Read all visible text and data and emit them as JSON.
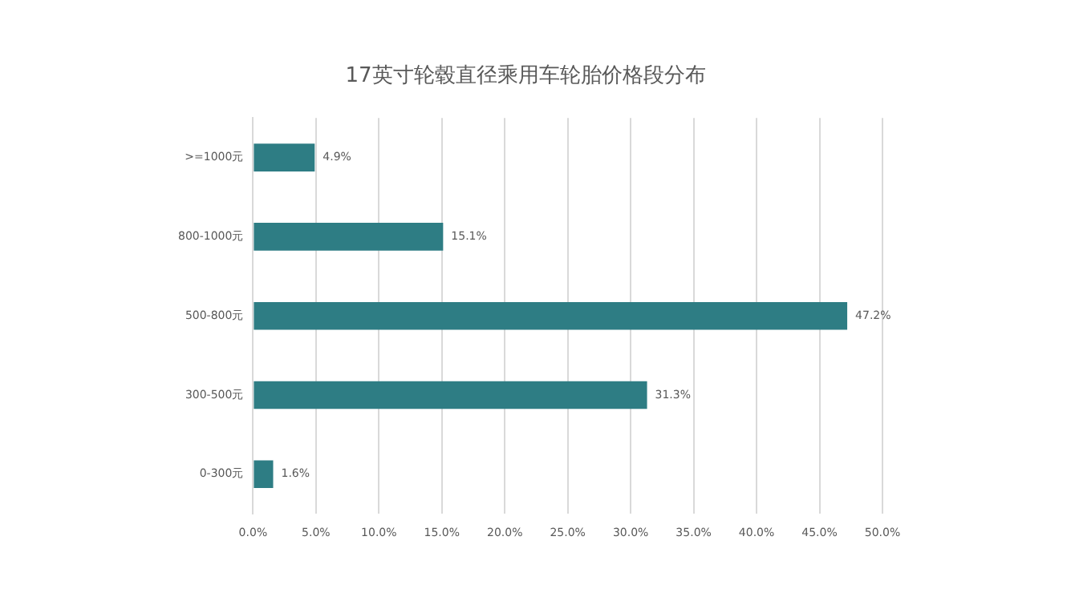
{
  "chart_data": {
    "type": "bar",
    "orientation": "horizontal",
    "title": "17英寸轮毂直径乘用车轮胎价格段分布",
    "categories": [
      ">=1000元",
      "800-1000元",
      "500-800元",
      "300-500元",
      "0-300元"
    ],
    "values": [
      4.9,
      15.1,
      47.2,
      31.3,
      1.6
    ],
    "color": "#2e7d84",
    "value_labels": [
      "4.9%",
      "15.1%",
      "47.2%",
      "31.3%",
      "1.6%"
    ],
    "xlim": [
      0,
      50
    ],
    "xticks": [
      {
        "value": 0,
        "label": "0.0%"
      },
      {
        "value": 5,
        "label": "5.0%"
      },
      {
        "value": 10,
        "label": "10.0%"
      },
      {
        "value": 15,
        "label": "15.0%"
      },
      {
        "value": 20,
        "label": "20.0%"
      },
      {
        "value": 25,
        "label": "25.0%"
      },
      {
        "value": 30,
        "label": "30.0%"
      },
      {
        "value": 35,
        "label": "35.0%"
      },
      {
        "value": 40,
        "label": "40.0%"
      },
      {
        "value": 45,
        "label": "45.0%"
      },
      {
        "value": 50,
        "label": "50.0%"
      }
    ],
    "grid": "x"
  }
}
